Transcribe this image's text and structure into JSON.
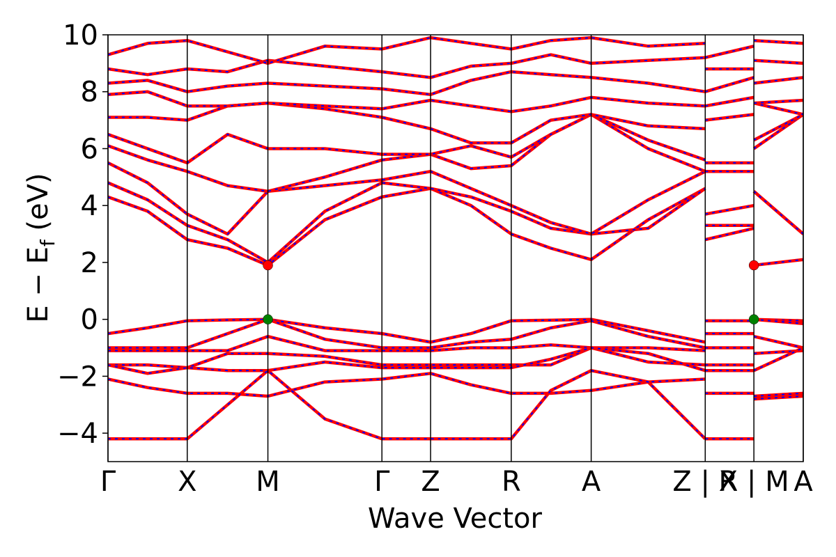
{
  "chart_data": {
    "type": "band-structure",
    "xlabel": "Wave Vector",
    "ylabel": [
      "E − E",
      "f",
      " (eV)"
    ],
    "xlim": [
      0,
      1
    ],
    "xticks": [
      {
        "value": 0,
        "label": "Γ"
      },
      {
        "value": 0.114,
        "label": "X"
      },
      {
        "value": 0.23,
        "label": "M"
      },
      {
        "value": 0.394,
        "label": "Γ"
      },
      {
        "value": 0.464,
        "label": "Z"
      },
      {
        "value": 0.58,
        "label": "R"
      },
      {
        "value": 0.695,
        "label": "A"
      },
      {
        "value": 0.859,
        "label": "Z | X"
      },
      {
        "value": 0.929,
        "label": "R | M"
      },
      {
        "value": 1,
        "label": "A"
      }
    ],
    "ylim": [
      -5,
      10
    ],
    "yticks": [
      {
        "value": -4,
        "label": "−4"
      },
      {
        "value": -2,
        "label": "−2"
      },
      0,
      2,
      4,
      6,
      8,
      10
    ],
    "line_color": "#ff0000",
    "dash_color": "#0000ff",
    "x": [
      0,
      0.057,
      0.114,
      0.172,
      0.23,
      0.312,
      0.394,
      0.464,
      0.522,
      0.58,
      0.637,
      0.695,
      0.777,
      0.859,
      0.859,
      0.859,
      0.929,
      0.929,
      0.929,
      1
    ],
    "bands": [
      [
        -0.5,
        -0.3,
        -0.05,
        -0.02,
        0,
        -0.3,
        -0.5,
        -0.8,
        -0.5,
        -0.05,
        -0.03,
        0,
        -0.4,
        -0.8,
        null,
        -0.05,
        -0.05,
        null,
        0,
        -0.05
      ],
      [
        -1.0,
        -1.0,
        -1.0,
        -0.5,
        0,
        -0.7,
        -1.0,
        -1.0,
        -0.8,
        -0.7,
        -0.3,
        -0.05,
        -0.6,
        -1.0,
        null,
        -0.5,
        -0.5,
        null,
        0,
        -0.15
      ],
      [
        -1.1,
        -1.1,
        -1.1,
        -1.1,
        -0.6,
        -1.1,
        -1.1,
        -1.1,
        -1.0,
        -1.0,
        -0.9,
        -1.0,
        -1.0,
        -1.1,
        null,
        -1.0,
        -1.0,
        null,
        -0.6,
        -1.0
      ],
      [
        -1.6,
        -1.6,
        -1.7,
        -1.2,
        -1.2,
        -1.3,
        -1.6,
        -1.6,
        -1.6,
        -1.6,
        -1.6,
        -1.0,
        -1.5,
        -1.6,
        null,
        -1.6,
        -1.6,
        null,
        -1.2,
        -1.1
      ],
      [
        -1.6,
        -1.9,
        -1.7,
        -1.8,
        -1.8,
        -1.5,
        -1.7,
        -1.7,
        -1.7,
        -1.7,
        -1.4,
        -1.0,
        -1.2,
        -1.8,
        null,
        -1.8,
        -1.8,
        null,
        -1.8,
        -1.0
      ],
      [
        -2.1,
        -2.4,
        -2.6,
        -2.6,
        -2.7,
        -2.2,
        -2.1,
        -1.9,
        -2.3,
        -2.6,
        -2.6,
        -2.5,
        -2.2,
        -2.1,
        null,
        -2.6,
        -2.6,
        null,
        -2.7,
        -2.6
      ],
      [
        -4.2,
        -4.2,
        -4.2,
        -3.0,
        -1.8,
        -3.5,
        -4.2,
        -4.2,
        -4.2,
        -4.2,
        -2.5,
        -1.8,
        -2.2,
        -4.2,
        null,
        -4.2,
        -4.2,
        null,
        -2.8,
        -2.7
      ],
      [
        4.3,
        3.8,
        2.8,
        2.5,
        1.9,
        3.5,
        4.3,
        4.6,
        4.0,
        3.0,
        2.5,
        2.1,
        3.5,
        4.6,
        null,
        2.8,
        3.2,
        null,
        1.9,
        2.1
      ],
      [
        4.8,
        4.2,
        3.3,
        2.8,
        2.0,
        3.8,
        4.8,
        4.6,
        4.3,
        3.8,
        3.2,
        3.0,
        3.2,
        4.6,
        null,
        3.3,
        3.3,
        null,
        4.5,
        3.0
      ],
      [
        5.5,
        4.8,
        3.7,
        3.0,
        4.5,
        4.7,
        4.9,
        5.2,
        4.6,
        4.0,
        3.4,
        3.0,
        4.2,
        5.2,
        null,
        3.7,
        4.0,
        null,
        4.5,
        3.0
      ],
      [
        6.1,
        5.6,
        5.2,
        4.7,
        4.5,
        5.0,
        5.6,
        5.8,
        5.3,
        5.4,
        6.5,
        7.2,
        6.0,
        5.2,
        null,
        5.2,
        5.2,
        null,
        6.0,
        7.2
      ],
      [
        6.5,
        6.0,
        5.5,
        6.5,
        6.0,
        6.0,
        5.8,
        5.8,
        6.1,
        5.7,
        6.5,
        7.2,
        6.3,
        5.6,
        null,
        5.5,
        5.5,
        null,
        6.3,
        7.2
      ],
      [
        7.1,
        7.1,
        7.0,
        7.5,
        7.6,
        7.4,
        7.1,
        6.7,
        6.2,
        6.2,
        7.0,
        7.2,
        6.8,
        6.7,
        null,
        7.0,
        7.2,
        null,
        7.6,
        7.2
      ],
      [
        7.9,
        8.0,
        7.5,
        7.5,
        7.6,
        7.5,
        7.4,
        7.7,
        7.5,
        7.3,
        7.5,
        7.8,
        7.6,
        7.5,
        null,
        7.5,
        7.8,
        null,
        7.6,
        7.7
      ],
      [
        8.3,
        8.4,
        8.0,
        8.2,
        8.3,
        8.2,
        8.1,
        7.9,
        8.4,
        8.7,
        8.6,
        8.5,
        8.3,
        8.0,
        null,
        8.0,
        8.5,
        null,
        8.3,
        8.5
      ],
      [
        8.8,
        8.6,
        8.8,
        8.7,
        9.1,
        8.9,
        8.7,
        8.5,
        8.9,
        9.0,
        9.3,
        9.0,
        9.1,
        9.2,
        null,
        8.8,
        8.8,
        null,
        9.1,
        9.0
      ],
      [
        9.3,
        9.7,
        9.8,
        9.4,
        9.0,
        9.6,
        9.5,
        9.9,
        9.7,
        9.5,
        9.8,
        9.9,
        9.6,
        9.7,
        null,
        9.2,
        9.6,
        null,
        9.8,
        9.7
      ]
    ],
    "markers": [
      {
        "color": "#ff0000",
        "x": [
          0.23,
          0.929
        ],
        "y": [
          1.9,
          1.9
        ]
      },
      {
        "color": "#008000",
        "x": [
          0.23,
          0.929
        ],
        "y": [
          0,
          0
        ]
      }
    ]
  }
}
